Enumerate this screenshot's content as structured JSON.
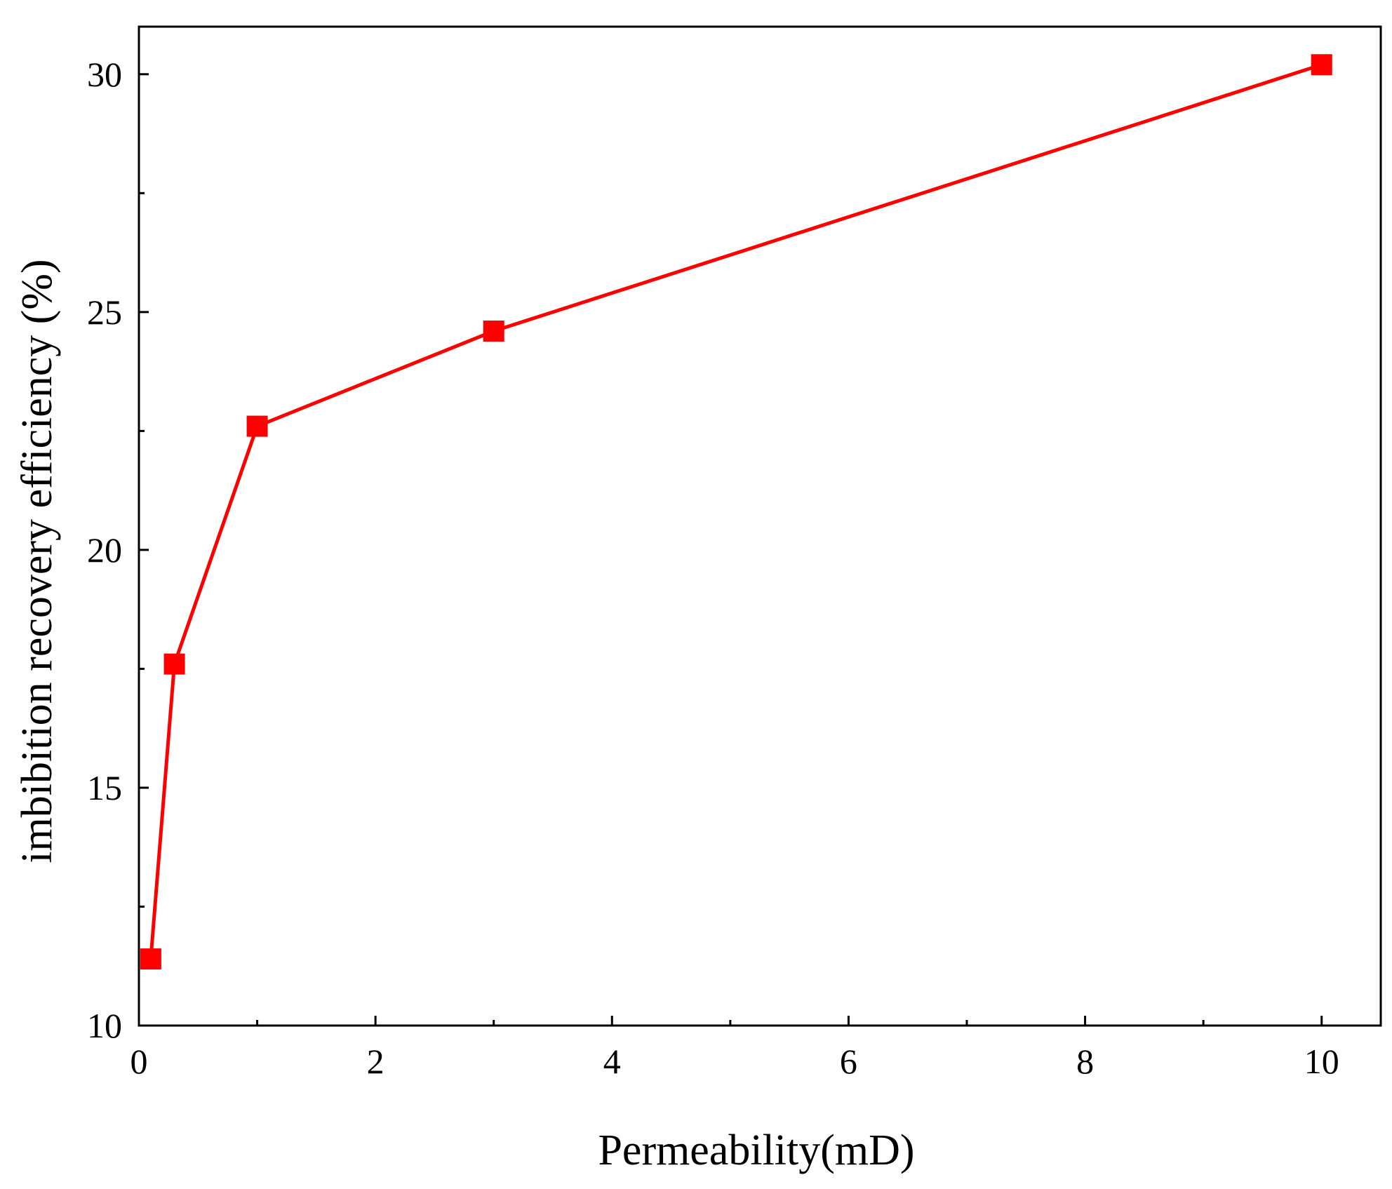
{
  "chart_data": {
    "type": "line",
    "title": "",
    "xlabel": "Permeability(mD)",
    "ylabel": "imbibition recovery efficiency (%)",
    "xlim": [
      0,
      10.5
    ],
    "ylim": [
      10,
      31
    ],
    "x_ticks": [
      0,
      2,
      4,
      6,
      8,
      10
    ],
    "y_ticks": [
      10,
      15,
      20,
      25,
      30
    ],
    "x_minor_step": 1,
    "y_minor_step": 2.5,
    "grid": false,
    "legend": "none",
    "series": [
      {
        "x": [
          0.1,
          0.3,
          1,
          3,
          10
        ],
        "y": [
          11.4,
          17.6,
          22.6,
          24.6,
          30.2
        ],
        "color": "#ff0000",
        "marker": "square"
      }
    ]
  }
}
